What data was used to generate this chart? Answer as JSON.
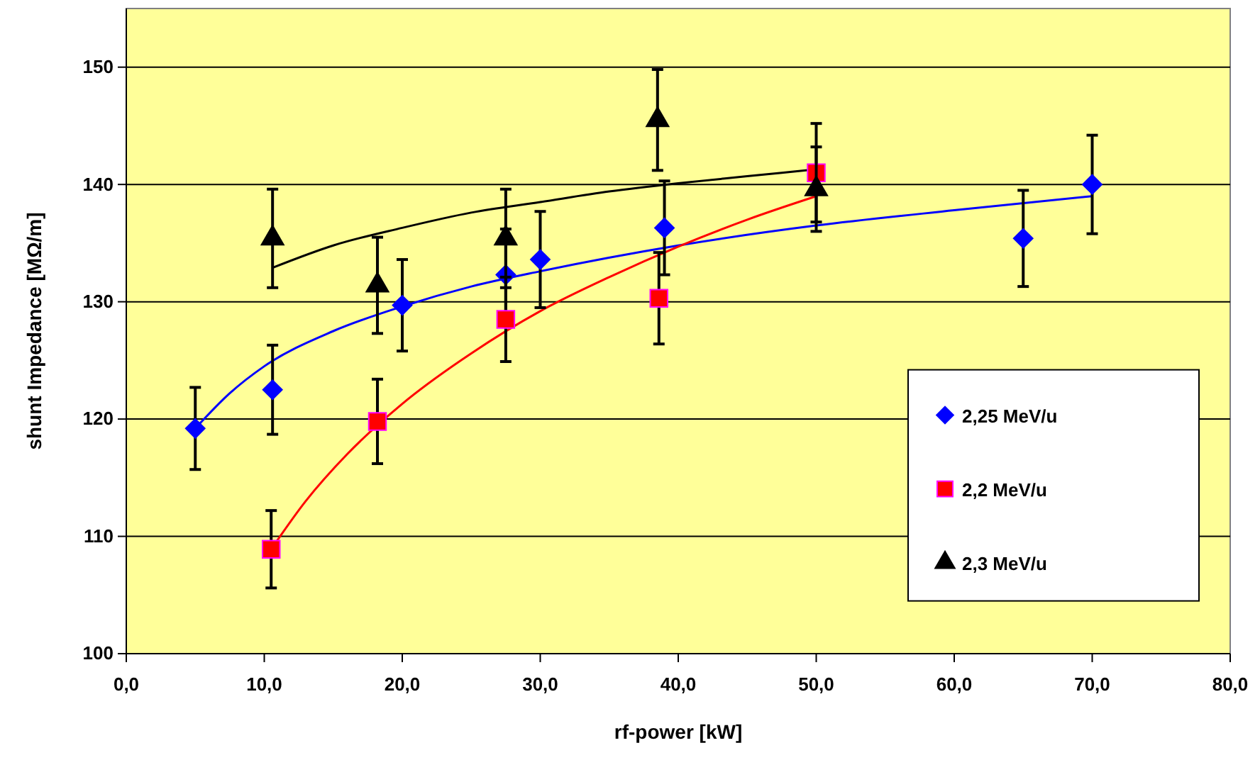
{
  "chart_data": {
    "type": "scatter",
    "xlabel": "rf-power [kW]",
    "ylabel": "shunt Impedance [MΩ/m]",
    "xlim": [
      0,
      80
    ],
    "xticks": [
      {
        "value": 0,
        "label": "0,0"
      },
      {
        "value": 10,
        "label": "10,0"
      },
      {
        "value": 20,
        "label": "20,0"
      },
      {
        "value": 30,
        "label": "30,0"
      },
      {
        "value": 40,
        "label": "40,0"
      },
      {
        "value": 50,
        "label": "50,0"
      },
      {
        "value": 60,
        "label": "60,0"
      },
      {
        "value": 70,
        "label": "70,0"
      },
      {
        "value": 80,
        "label": "80,0"
      }
    ],
    "ylim": [
      100,
      155
    ],
    "yticks": [
      100,
      110,
      120,
      130,
      140,
      150
    ],
    "grid": "y",
    "legend": "right",
    "series": [
      {
        "name": "2,25 MeV/u",
        "marker": "diamond",
        "color": "#0000ff",
        "x": [
          5,
          10.6,
          20,
          27.5,
          30,
          39,
          65,
          70
        ],
        "values": [
          119.2,
          122.5,
          129.7,
          132.3,
          133.6,
          136.3,
          135.4,
          140
        ],
        "errors": [
          3.5,
          3.8,
          3.9,
          3.9,
          4.1,
          4,
          4.1,
          4.2
        ]
      },
      {
        "name": "2,2 MeV/u",
        "marker": "square",
        "color": "#ff0000",
        "x": [
          10.5,
          18.2,
          27.5,
          38.6,
          50
        ],
        "values": [
          108.9,
          119.8,
          128.5,
          130.3,
          141
        ],
        "errors": [
          3.3,
          3.6,
          3.6,
          3.9,
          4.2
        ]
      },
      {
        "name": "2,3 MeV/u",
        "marker": "triangle",
        "color": "#000000",
        "x": [
          10.6,
          18.2,
          27.5,
          38.5,
          50
        ],
        "values": [
          135.4,
          131.4,
          135.4,
          145.5,
          139.6
        ],
        "errors": [
          4.2,
          4.1,
          4.2,
          4.3,
          3.6
        ]
      },
      {
        "type": "line",
        "color": "#0000ff",
        "x": [
          5,
          7.5,
          10,
          15,
          20,
          25,
          30,
          40,
          50,
          60,
          70
        ],
        "values": [
          119.2,
          122.2,
          124.5,
          127.5,
          129.6,
          131.3,
          132.6,
          134.8,
          136.5,
          137.8,
          139
        ]
      },
      {
        "type": "line",
        "color": "#ff0000",
        "x": [
          10.5,
          13,
          16,
          20,
          25,
          30,
          35,
          40,
          45,
          50
        ],
        "values": [
          108.9,
          113,
          117,
          121.3,
          125.6,
          129.2,
          132.1,
          134.7,
          137,
          139
        ]
      },
      {
        "type": "line",
        "color": "#000000",
        "x": [
          10.6,
          15,
          20,
          25,
          30,
          35,
          40,
          45,
          50
        ],
        "values": [
          132.9,
          134.8,
          136.3,
          137.6,
          138.5,
          139.4,
          140.1,
          140.7,
          141.3
        ]
      }
    ]
  }
}
